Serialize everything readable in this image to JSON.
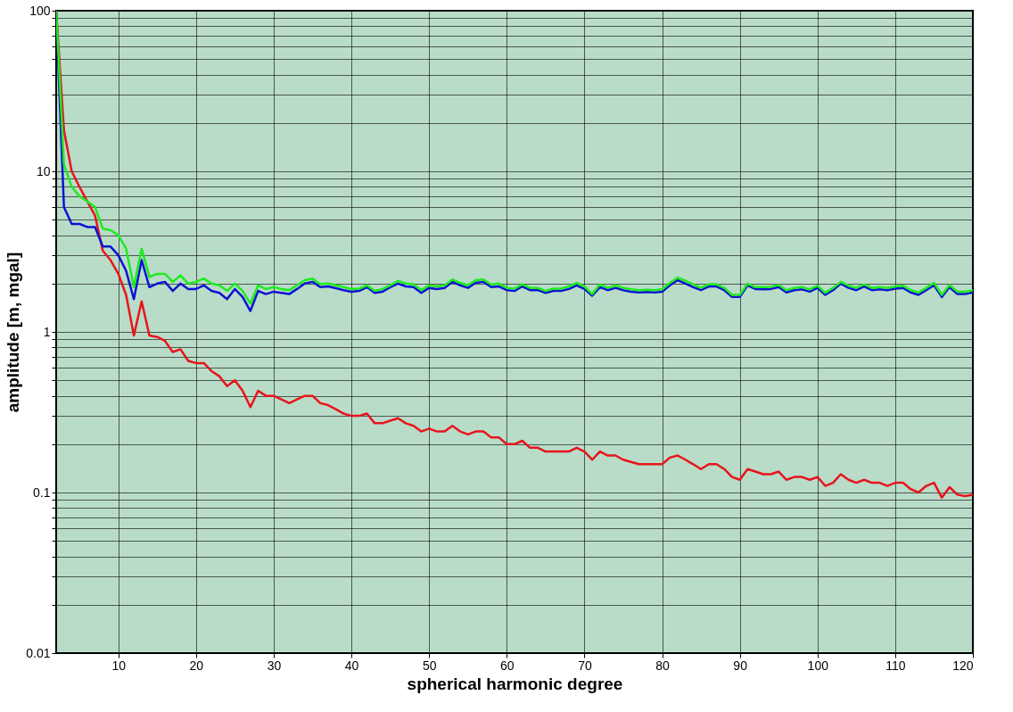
{
  "chart_data": {
    "type": "line",
    "xlabel": "spherical harmonic degree",
    "ylabel": "amplitude [m, mgal]",
    "x": [
      2,
      3,
      4,
      5,
      6,
      7,
      8,
      9,
      10,
      11,
      12,
      13,
      14,
      15,
      16,
      17,
      18,
      19,
      20,
      21,
      22,
      23,
      24,
      25,
      26,
      27,
      28,
      29,
      30,
      31,
      32,
      33,
      34,
      35,
      36,
      37,
      38,
      39,
      40,
      41,
      42,
      43,
      44,
      45,
      46,
      47,
      48,
      49,
      50,
      51,
      52,
      53,
      54,
      55,
      56,
      57,
      58,
      59,
      60,
      61,
      62,
      63,
      64,
      65,
      66,
      67,
      68,
      69,
      70,
      71,
      72,
      73,
      74,
      75,
      76,
      77,
      78,
      79,
      80,
      81,
      82,
      83,
      84,
      85,
      86,
      87,
      88,
      89,
      90,
      91,
      92,
      93,
      94,
      95,
      96,
      97,
      98,
      99,
      100,
      101,
      102,
      103,
      104,
      105,
      106,
      107,
      108,
      109,
      110,
      111,
      112,
      113,
      114,
      115,
      116,
      117,
      118,
      119,
      120
    ],
    "series": [
      {
        "color": "#e8141c",
        "values": [
          100,
          18,
          10,
          8,
          6.5,
          5.3,
          3.2,
          2.8,
          2.3,
          1.7,
          0.95,
          1.55,
          0.95,
          0.93,
          0.88,
          0.75,
          0.78,
          0.66,
          0.64,
          0.64,
          0.57,
          0.53,
          0.46,
          0.5,
          0.43,
          0.34,
          0.43,
          0.4,
          0.4,
          0.38,
          0.36,
          0.38,
          0.4,
          0.4,
          0.36,
          0.35,
          0.33,
          0.31,
          0.3,
          0.3,
          0.31,
          0.27,
          0.27,
          0.28,
          0.29,
          0.27,
          0.26,
          0.24,
          0.25,
          0.24,
          0.24,
          0.26,
          0.24,
          0.23,
          0.24,
          0.24,
          0.22,
          0.22,
          0.2,
          0.2,
          0.21,
          0.19,
          0.19,
          0.18,
          0.18,
          0.18,
          0.18,
          0.19,
          0.18,
          0.16,
          0.18,
          0.17,
          0.17,
          0.16,
          0.155,
          0.15,
          0.15,
          0.15,
          0.15,
          0.165,
          0.17,
          0.16,
          0.15,
          0.14,
          0.15,
          0.15,
          0.14,
          0.125,
          0.12,
          0.14,
          0.135,
          0.13,
          0.13,
          0.135,
          0.12,
          0.125,
          0.125,
          0.12,
          0.125,
          0.11,
          0.115,
          0.13,
          0.12,
          0.115,
          0.12,
          0.115,
          0.115,
          0.11,
          0.115,
          0.115,
          0.105,
          0.1,
          0.11,
          0.115,
          0.093,
          0.108,
          0.097,
          0.095,
          0.097
        ]
      },
      {
        "color": "#0a14d2",
        "values": [
          100,
          6,
          4.7,
          4.7,
          4.5,
          4.5,
          3.4,
          3.4,
          3.0,
          2.4,
          1.6,
          2.8,
          1.9,
          2.0,
          2.05,
          1.8,
          2.0,
          1.85,
          1.85,
          1.95,
          1.8,
          1.75,
          1.6,
          1.85,
          1.65,
          1.35,
          1.8,
          1.72,
          1.78,
          1.75,
          1.72,
          1.85,
          2.0,
          2.05,
          1.9,
          1.92,
          1.87,
          1.82,
          1.78,
          1.8,
          1.9,
          1.75,
          1.78,
          1.9,
          2.0,
          1.92,
          1.9,
          1.75,
          1.88,
          1.85,
          1.88,
          2.05,
          1.95,
          1.88,
          2.02,
          2.05,
          1.9,
          1.92,
          1.82,
          1.8,
          1.92,
          1.82,
          1.82,
          1.75,
          1.8,
          1.8,
          1.85,
          1.95,
          1.85,
          1.68,
          1.9,
          1.82,
          1.88,
          1.82,
          1.78,
          1.76,
          1.77,
          1.76,
          1.78,
          1.95,
          2.1,
          2.0,
          1.9,
          1.82,
          1.92,
          1.92,
          1.82,
          1.65,
          1.65,
          1.95,
          1.85,
          1.84,
          1.85,
          1.9,
          1.76,
          1.82,
          1.84,
          1.78,
          1.88,
          1.7,
          1.82,
          2.0,
          1.88,
          1.82,
          1.92,
          1.82,
          1.84,
          1.82,
          1.86,
          1.88,
          1.76,
          1.7,
          1.82,
          1.95,
          1.65,
          1.9,
          1.72,
          1.72,
          1.76
        ]
      },
      {
        "color": "#1eeb1e",
        "values": [
          100,
          11,
          8,
          7,
          6.5,
          6,
          4.4,
          4.3,
          4.0,
          3.3,
          1.9,
          3.3,
          2.2,
          2.3,
          2.3,
          2.05,
          2.25,
          2.0,
          2.05,
          2.15,
          2.0,
          1.95,
          1.8,
          2.0,
          1.8,
          1.5,
          1.95,
          1.85,
          1.9,
          1.85,
          1.82,
          1.95,
          2.1,
          2.15,
          1.98,
          2.0,
          1.95,
          1.9,
          1.85,
          1.86,
          1.95,
          1.8,
          1.85,
          1.95,
          2.08,
          2.0,
          1.98,
          1.82,
          1.95,
          1.92,
          1.95,
          2.12,
          2.02,
          1.95,
          2.1,
          2.12,
          1.97,
          2.0,
          1.88,
          1.86,
          1.98,
          1.88,
          1.88,
          1.8,
          1.86,
          1.86,
          1.92,
          2.02,
          1.92,
          1.72,
          1.98,
          1.88,
          1.95,
          1.88,
          1.84,
          1.82,
          1.83,
          1.82,
          1.84,
          2.02,
          2.18,
          2.08,
          1.98,
          1.88,
          1.98,
          1.98,
          1.88,
          1.7,
          1.7,
          2.0,
          1.9,
          1.9,
          1.91,
          1.96,
          1.82,
          1.88,
          1.9,
          1.84,
          1.94,
          1.75,
          1.88,
          2.05,
          1.94,
          1.88,
          1.98,
          1.88,
          1.9,
          1.88,
          1.92,
          1.94,
          1.82,
          1.76,
          1.88,
          2.02,
          1.7,
          1.96,
          1.78,
          1.78,
          1.82
        ]
      }
    ],
    "xlim": [
      2,
      120
    ],
    "xticks": [
      10,
      20,
      30,
      40,
      50,
      60,
      70,
      80,
      90,
      100,
      110,
      120
    ],
    "ylim": [
      0.01,
      100
    ],
    "log": true,
    "yticks": [
      0.01,
      {
        "value": 0.02,
        "label": null
      },
      {
        "value": 0.03,
        "label": null
      },
      {
        "value": 0.04,
        "label": null
      },
      {
        "value": 0.05,
        "label": null
      },
      {
        "value": 0.06,
        "label": null
      },
      {
        "value": 0.07,
        "label": null
      },
      {
        "value": 0.08,
        "label": null
      },
      {
        "value": 0.09,
        "label": null
      },
      0.1,
      {
        "value": 0.2,
        "label": null
      },
      {
        "value": 0.3,
        "label": null
      },
      {
        "value": 0.4,
        "label": null
      },
      {
        "value": 0.5,
        "label": null
      },
      {
        "value": 0.6,
        "label": null
      },
      {
        "value": 0.7,
        "label": null
      },
      {
        "value": 0.8,
        "label": null
      },
      {
        "value": 0.9,
        "label": null
      },
      1,
      {
        "value": 2,
        "label": null
      },
      {
        "value": 3,
        "label": null
      },
      {
        "value": 4,
        "label": null
      },
      {
        "value": 5,
        "label": null
      },
      {
        "value": 6,
        "label": null
      },
      {
        "value": 7,
        "label": null
      },
      {
        "value": 8,
        "label": null
      },
      {
        "value": 9,
        "label": null
      },
      10,
      {
        "value": 20,
        "label": null
      },
      {
        "value": 30,
        "label": null
      },
      {
        "value": 40,
        "label": null
      },
      {
        "value": 50,
        "label": null
      },
      {
        "value": 60,
        "label": null
      },
      {
        "value": 70,
        "label": null
      },
      {
        "value": 80,
        "label": null
      },
      {
        "value": 90,
        "label": null
      },
      100
    ],
    "grid": true,
    "legend": false,
    "marker": "none",
    "line_style": "solid"
  }
}
